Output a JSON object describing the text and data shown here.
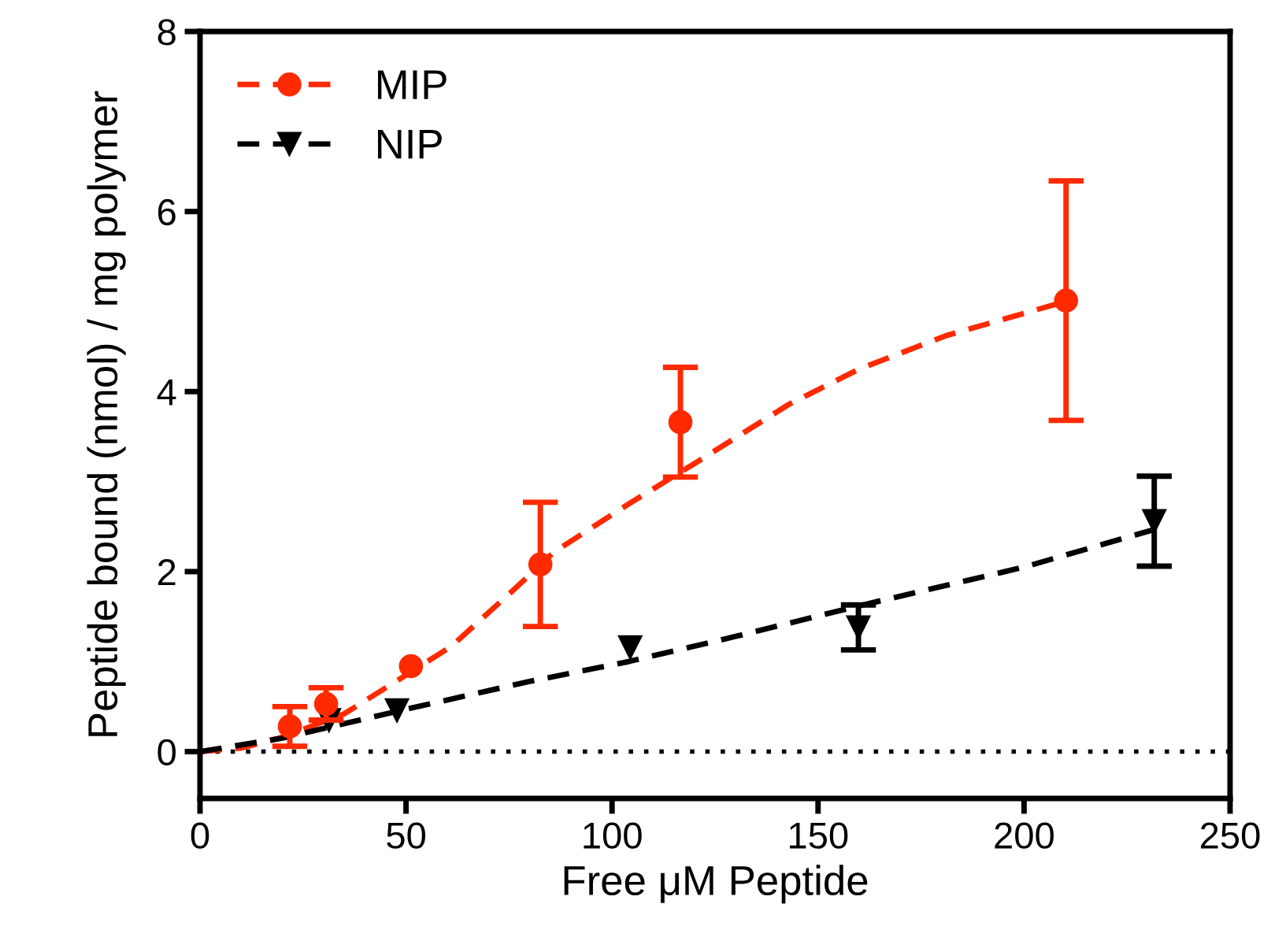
{
  "chart_data": {
    "type": "scatter",
    "xlabel": "Free μM Peptide",
    "ylabel": "Peptide bound (nmol) / mg polymer",
    "xlim": [
      0,
      250
    ],
    "xticks": [
      0,
      50,
      100,
      150,
      200,
      250
    ],
    "ylim": [
      -0.52,
      8
    ],
    "yticks": [
      0,
      2,
      4,
      6,
      8
    ],
    "grid": false,
    "legend": "top left",
    "ref_lines": [
      {
        "axis": "y",
        "value": 0,
        "color": "#000000",
        "line_style": "dotted"
      }
    ],
    "series": [
      {
        "name": "MIP",
        "color": "#ff2a00",
        "marker": "circle",
        "x": [
          21.8,
          30.6,
          51.2,
          82.6,
          116.6,
          210.2
        ],
        "values": [
          0.28,
          0.53,
          0.95,
          2.08,
          3.66,
          5.01
        ],
        "errors": [
          0.22,
          0.18,
          null,
          0.69,
          0.61,
          1.33
        ]
      },
      {
        "name": "NIP",
        "color": "#000000",
        "marker": "triangle",
        "x": [
          31.3,
          47.8,
          104.4,
          159.8,
          231.6
        ],
        "values": [
          0.35,
          0.46,
          1.16,
          1.38,
          2.56
        ],
        "errors": [
          null,
          null,
          null,
          0.25,
          0.5
        ]
      },
      {
        "type": "line",
        "color": "#ff2a00",
        "line_style": "dashed",
        "x": [
          0,
          10,
          20,
          35,
          50,
          61,
          75,
          86,
          104,
          120,
          143,
          160,
          181,
          210
        ],
        "values": [
          0,
          0.04,
          0.16,
          0.42,
          0.85,
          1.17,
          1.75,
          2.22,
          2.75,
          3.2,
          3.86,
          4.25,
          4.62,
          5.0
        ]
      },
      {
        "type": "line",
        "color": "#000000",
        "line_style": "dashed",
        "x": [
          0,
          20,
          48,
          80,
          104,
          130,
          160,
          200,
          231
        ],
        "values": [
          0,
          0.15,
          0.45,
          0.78,
          1.0,
          1.28,
          1.62,
          2.05,
          2.46
        ]
      }
    ]
  }
}
